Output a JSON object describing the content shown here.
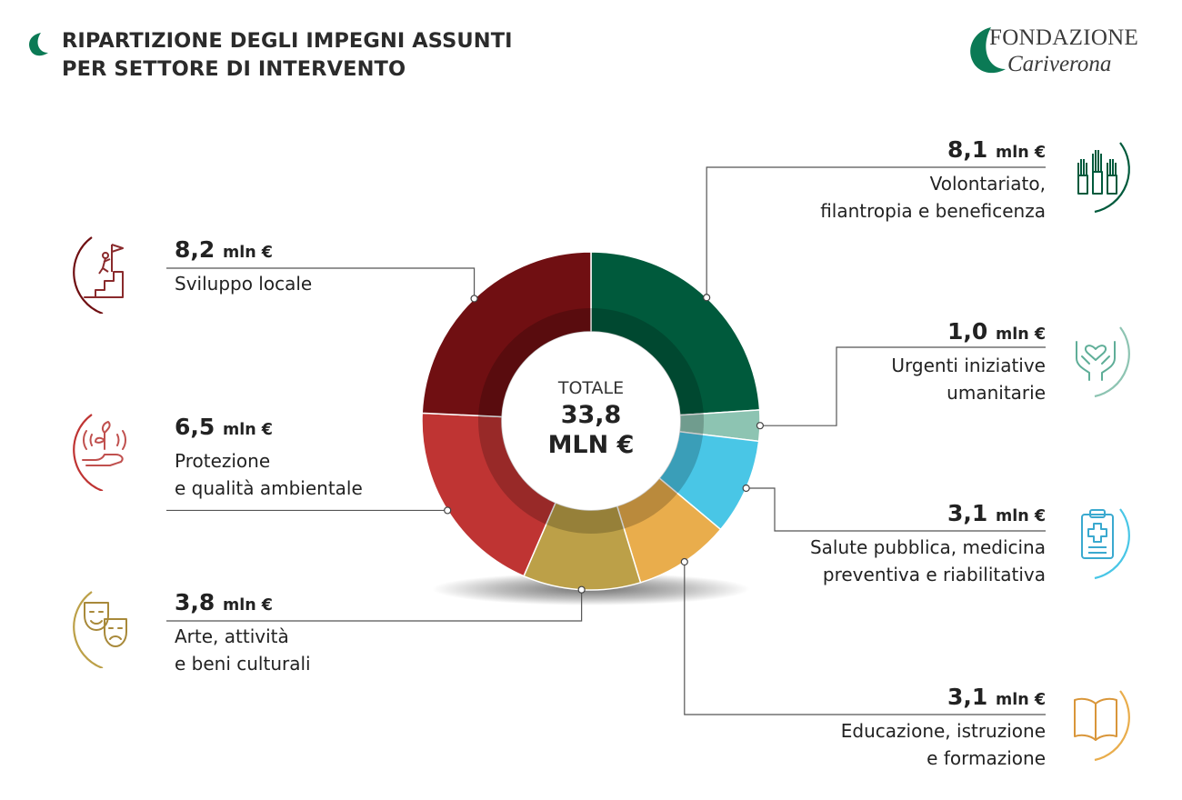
{
  "header": {
    "title_line1": "RIPARTIZIONE DEGLI IMPEGNI ASSUNTI",
    "title_line2": "PER SETTORE DI INTERVENTO"
  },
  "logo": {
    "line1": "FONDAZIONE",
    "line2": "Cariverona",
    "color": "#0b7a55"
  },
  "center": {
    "line1": "TOTALE",
    "line2": "33,8",
    "line3": "MLN €"
  },
  "chart_data": {
    "type": "pie",
    "variant": "donut",
    "total": 33.8,
    "total_label": "TOTALE 33,8 MLN €",
    "unit": "mln €",
    "slices": [
      {
        "name": "Volontariato, filantropia e beneficenza",
        "value": 8.1,
        "value_label": "8,1",
        "color": "#005a3c",
        "icon": "raised-hands-icon"
      },
      {
        "name": "Urgenti iniziative umanitarie",
        "value": 1.0,
        "value_label": "1,0",
        "color": "#8dc4b2",
        "icon": "heart-in-hands-icon"
      },
      {
        "name": "Salute pubblica, medicina preventiva e riabilitativa",
        "value": 3.1,
        "value_label": "3,1",
        "color": "#49c6e6",
        "icon": "medical-clipboard-icon"
      },
      {
        "name": "Educazione, istruzione e formazione",
        "value": 3.1,
        "value_label": "3,1",
        "color": "#e9ad4c",
        "icon": "open-book-icon"
      },
      {
        "name": "Arte, attività e beni culturali",
        "value": 3.8,
        "value_label": "3,8",
        "color": "#bca048",
        "icon": "theater-masks-icon"
      },
      {
        "name": "Protezione e qualità ambientale",
        "value": 6.5,
        "value_label": "6,5",
        "color": "#bf3433",
        "icon": "plant-in-hand-icon"
      },
      {
        "name": "Sviluppo locale",
        "value": 8.2,
        "value_label": "8,2",
        "color": "#700f12",
        "icon": "flag-summit-icon"
      }
    ]
  },
  "labels": {
    "volontariato": {
      "amount": "8,1",
      "unit": "mln €",
      "line1": "Volontariato,",
      "line2": "filantropia e beneficenza"
    },
    "urgenti": {
      "amount": "1,0",
      "unit": "mln €",
      "line1": "Urgenti iniziative",
      "line2": "umanitarie"
    },
    "salute": {
      "amount": "3,1",
      "unit": "mln €",
      "line1": "Salute pubblica, medicina",
      "line2": "preventiva e riabilitativa"
    },
    "educazione": {
      "amount": "3,1",
      "unit": "mln €",
      "line1": "Educazione, istruzione",
      "line2": "e formazione"
    },
    "arte": {
      "amount": "3,8",
      "unit": "mln €",
      "line1": "Arte, attività",
      "line2": "e beni culturali"
    },
    "protezione": {
      "amount": "6,5",
      "unit": "mln €",
      "line1": "Protezione",
      "line2": "e qualità ambientale"
    },
    "sviluppo": {
      "amount": "8,2",
      "unit": "mln €",
      "line1": "Sviluppo locale",
      "line2": ""
    }
  }
}
